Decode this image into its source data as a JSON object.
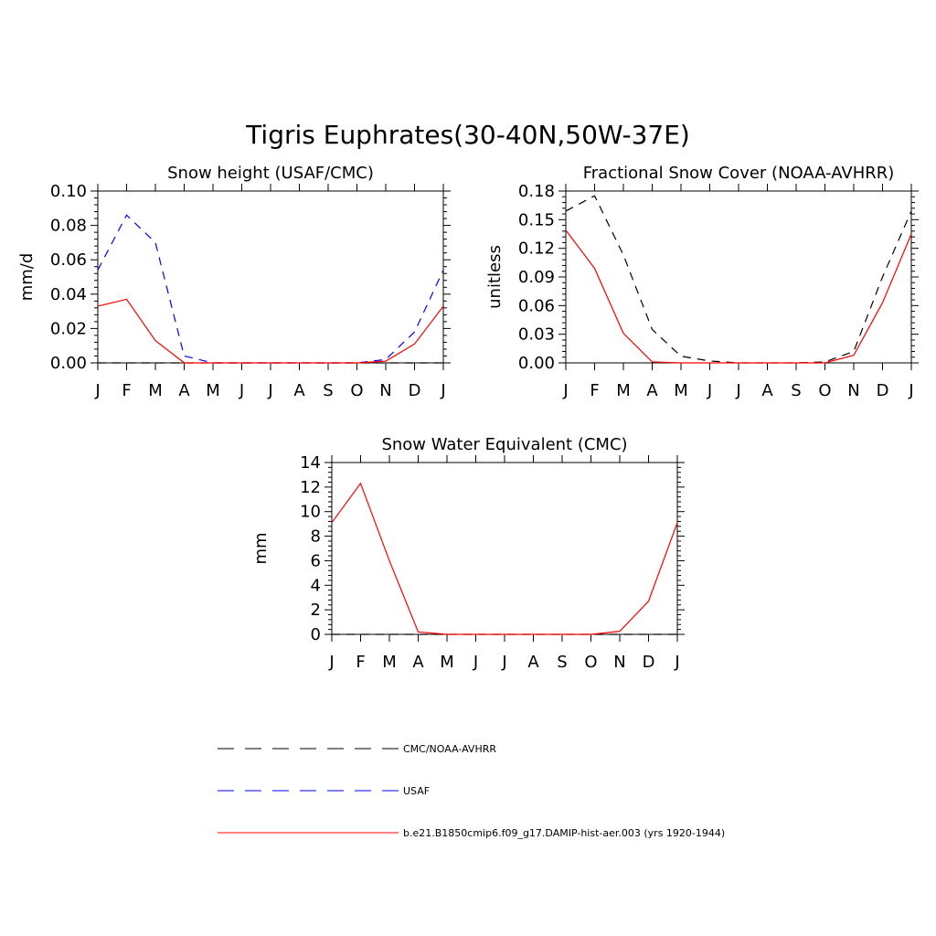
{
  "figure": {
    "title": "Tigris Euphrates(30-40N,50W-37E)"
  },
  "legend": [
    {
      "label": "CMC/NOAA-AVHRR",
      "color": "#000000",
      "dash": "dashed"
    },
    {
      "label": "USAF",
      "color": "#0000ff",
      "dash": "dashed"
    },
    {
      "label": "b.e21.B1850cmip6.f09_g17.DAMIP-hist-aer.003 (yrs 1920-1944)",
      "color": "#ff0000",
      "dash": "solid"
    }
  ],
  "chart_data": [
    {
      "type": "line",
      "title": "Snow height (USAF/CMC)",
      "xlabel": "",
      "ylabel": "mm/d",
      "categories": [
        "J",
        "F",
        "M",
        "A",
        "M",
        "J",
        "J",
        "A",
        "S",
        "O",
        "N",
        "D",
        "J"
      ],
      "ylim": [
        0,
        0.1
      ],
      "yticks": [
        "0.00",
        "0.02",
        "0.04",
        "0.06",
        "0.08",
        "0.10"
      ],
      "series": [
        {
          "name": "CMC/NOAA-AVHRR",
          "color": "#000000",
          "dash": "dashed",
          "values": [
            0,
            0,
            0,
            0,
            0,
            0,
            0,
            0,
            0,
            0,
            0,
            0,
            0
          ]
        },
        {
          "name": "USAF",
          "color": "#0000ff",
          "dash": "dashed",
          "values": [
            0.054,
            0.086,
            0.07,
            0.004,
            0.0,
            0.0,
            0.0,
            0.0,
            0.0,
            0.0,
            0.002,
            0.018,
            0.054
          ]
        },
        {
          "name": "b.e21.B1850cmip6.f09_g17.DAMIP-hist-aer.003 (yrs 1920-1944)",
          "color": "#ff0000",
          "dash": "solid",
          "values": [
            0.033,
            0.037,
            0.013,
            0.0,
            0.0,
            0.0,
            0.0,
            0.0,
            0.0,
            0.0,
            0.001,
            0.011,
            0.033
          ]
        }
      ]
    },
    {
      "type": "line",
      "title": "Fractional Snow Cover (NOAA-AVHRR)",
      "xlabel": "",
      "ylabel": "unitless",
      "categories": [
        "J",
        "F",
        "M",
        "A",
        "M",
        "J",
        "J",
        "A",
        "S",
        "O",
        "N",
        "D",
        "J"
      ],
      "ylim": [
        0,
        0.18
      ],
      "yticks": [
        "0.00",
        "0.03",
        "0.06",
        "0.09",
        "0.12",
        "0.15",
        "0.18"
      ],
      "series": [
        {
          "name": "CMC/NOAA-AVHRR",
          "color": "#000000",
          "dash": "dashed",
          "values": [
            0.159,
            0.175,
            0.113,
            0.035,
            0.007,
            0.002,
            0.0,
            0.0,
            0.0,
            0.001,
            0.012,
            0.09,
            0.159
          ]
        },
        {
          "name": "b.e21.B1850cmip6.f09_g17.DAMIP-hist-aer.003 (yrs 1920-1944)",
          "color": "#ff0000",
          "dash": "solid",
          "values": [
            0.139,
            0.099,
            0.031,
            0.001,
            0.0,
            0.0,
            0.0,
            0.0,
            0.0,
            0.0,
            0.008,
            0.063,
            0.135
          ]
        }
      ]
    },
    {
      "type": "line",
      "title": "Snow Water Equivalent (CMC)",
      "xlabel": "",
      "ylabel": "mm",
      "categories": [
        "J",
        "F",
        "M",
        "A",
        "M",
        "J",
        "J",
        "A",
        "S",
        "O",
        "N",
        "D",
        "J"
      ],
      "ylim": [
        0,
        14
      ],
      "yticks": [
        "0",
        "2",
        "4",
        "6",
        "8",
        "10",
        "12",
        "14"
      ],
      "series": [
        {
          "name": "CMC/NOAA-AVHRR",
          "color": "#000000",
          "dash": "dashed",
          "values": [
            0,
            0,
            0,
            0,
            0,
            0,
            0,
            0,
            0,
            0,
            0,
            0,
            0
          ]
        },
        {
          "name": "b.e21.B1850cmip6.f09_g17.DAMIP-hist-aer.003 (yrs 1920-1944)",
          "color": "#ff0000",
          "dash": "solid",
          "values": [
            9.1,
            12.3,
            6.0,
            0.2,
            0.0,
            0.0,
            0.0,
            0.0,
            0.0,
            0.0,
            0.25,
            2.7,
            9.1
          ]
        }
      ]
    }
  ]
}
